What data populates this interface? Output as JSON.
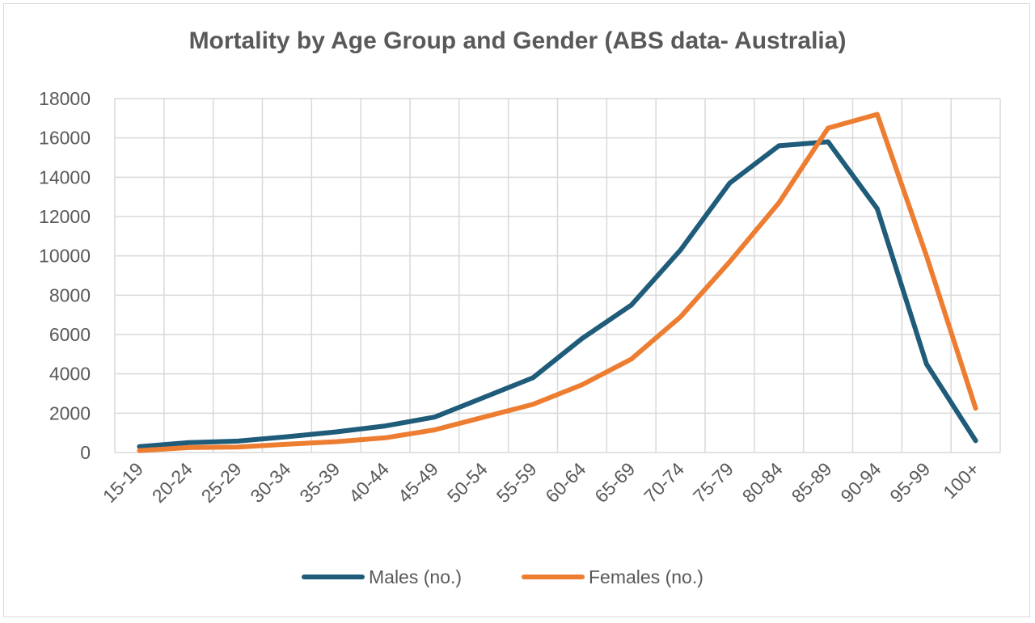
{
  "chart_data": {
    "type": "line",
    "title": "Mortality by Age Group and Gender (ABS data- Australia)",
    "xlabel": "",
    "ylabel": "",
    "categories": [
      "15-19",
      "20-24",
      "25-29",
      "30-34",
      "35-39",
      "40-44",
      "45-49",
      "50-54",
      "55-59",
      "60-64",
      "65-69",
      "70-74",
      "75-79",
      "80-84",
      "85-89",
      "90-94",
      "95-99",
      "100+"
    ],
    "series": [
      {
        "name": "Males (no.)",
        "color": "#1f5c7a",
        "values": [
          300,
          500,
          580,
          800,
          1050,
          1350,
          1800,
          2800,
          3800,
          5800,
          7500,
          10300,
          13700,
          15600,
          15800,
          12400,
          4500,
          600
        ]
      },
      {
        "name": "Females (no.)",
        "color": "#ed7d31",
        "values": [
          100,
          250,
          280,
          420,
          550,
          750,
          1150,
          1800,
          2450,
          3450,
          4750,
          6900,
          9700,
          12700,
          16500,
          17200,
          10000,
          2250
        ]
      }
    ],
    "ylim": [
      0,
      18000
    ],
    "yticks": [
      0,
      2000,
      4000,
      6000,
      8000,
      10000,
      12000,
      14000,
      16000,
      18000
    ],
    "grid": true,
    "legend_position": "bottom"
  }
}
